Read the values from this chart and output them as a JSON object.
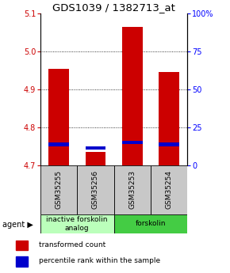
{
  "title": "GDS1039 / 1382713_at",
  "samples": [
    "GSM35255",
    "GSM35256",
    "GSM35253",
    "GSM35254"
  ],
  "red_values": [
    4.955,
    4.735,
    5.065,
    4.945
  ],
  "blue_values": [
    4.755,
    4.745,
    4.76,
    4.755
  ],
  "ymin": 4.7,
  "ymax": 5.1,
  "yticks_left": [
    4.7,
    4.8,
    4.9,
    5.0,
    5.1
  ],
  "yticks_right": [
    0,
    25,
    50,
    75,
    100
  ],
  "yticks_right_labels": [
    "0",
    "25",
    "50",
    "75",
    "100%"
  ],
  "bar_width": 0.55,
  "bar_color_red": "#cc0000",
  "bar_color_blue": "#0000cc",
  "agent_groups": [
    {
      "label": "inactive forskolin\nanalog",
      "samples": [
        0,
        1
      ],
      "color": "#bbffbb"
    },
    {
      "label": "forskolin",
      "samples": [
        2,
        3
      ],
      "color": "#44cc44"
    }
  ],
  "grid_color": "black",
  "background_color": "white",
  "title_fontsize": 9.5,
  "tick_fontsize": 7,
  "label_fontsize": 6.5,
  "legend_fontsize": 6.5
}
